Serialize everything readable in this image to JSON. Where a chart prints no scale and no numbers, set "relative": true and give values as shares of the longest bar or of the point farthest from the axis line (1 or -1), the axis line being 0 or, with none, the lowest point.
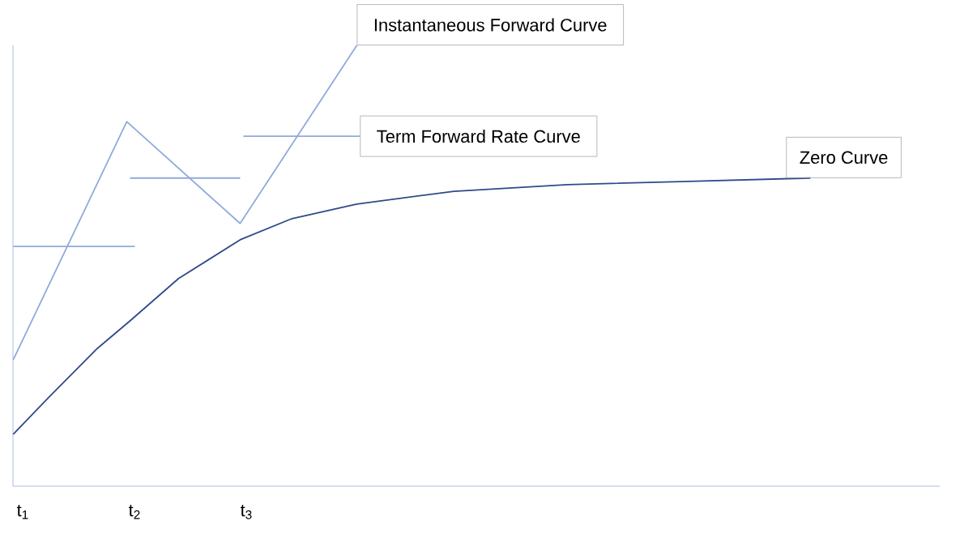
{
  "chart_data": {
    "type": "line",
    "relative": true,
    "xlim": [
      0.91,
      9.2
    ],
    "xticks": [
      {
        "value": 1,
        "label": "t$_{1}$"
      },
      {
        "value": 2,
        "label": "t$_{2}$"
      },
      {
        "value": 3,
        "label": "t$_{3}$"
      }
    ],
    "series": [
      {
        "color": "#2f4a8a",
        "x": [
          0.913,
          1.232,
          1.667,
          1.957,
          2.391,
          2.942,
          3.406,
          3.986,
          4.855,
          5.87,
          6.884,
          8.043
        ],
        "values": [
          0.118,
          0.202,
          0.313,
          0.375,
          0.471,
          0.559,
          0.607,
          0.64,
          0.669,
          0.684,
          0.691,
          0.699
        ]
      },
      {
        "color": "#8faadc",
        "x": [
          0.913,
          1.928,
          2.942,
          3.986
        ],
        "values": [
          0.287,
          0.827,
          0.596,
          1.0
        ]
      },
      {
        "color": "#8faadc",
        "x": [
          0.913,
          2.0
        ],
        "values": [
          0.544,
          0.544
        ]
      },
      {
        "color": "#8faadc",
        "x": [
          1.957,
          2.942
        ],
        "values": [
          0.699,
          0.699
        ]
      },
      {
        "color": "#8faadc",
        "x": [
          2.971,
          4.014
        ],
        "values": [
          0.794,
          0.794
        ]
      }
    ],
    "annotations": [
      {
        "text": "Instantaneous Forward Curve",
        "x": 3.986,
        "y": 1.0
      },
      {
        "text": "Term Forward Rate Curve",
        "x": 4.014,
        "y": 0.794
      },
      {
        "text": "Zero Curve",
        "x": 7.826,
        "y": 0.699
      }
    ],
    "grid": false,
    "marker": "none",
    "line_style": "solid"
  }
}
